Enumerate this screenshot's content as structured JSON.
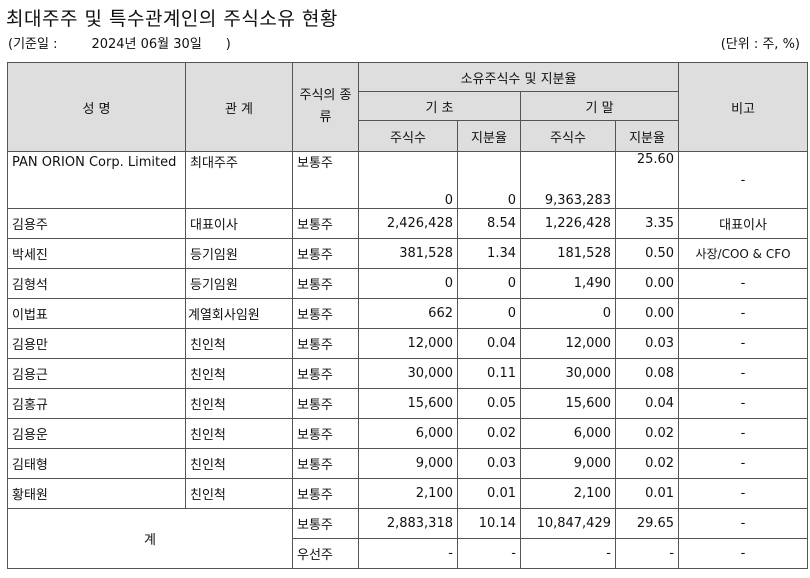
{
  "title": "최대주주 및 특수관계인의 주식소유 현황",
  "basis": {
    "label": "(기준일 :",
    "date": "2024년 06월 30일",
    "close": ")"
  },
  "unit": "(단위 : 주, %)",
  "headers": {
    "name": "성 명",
    "relation": "관 계",
    "kind": "주식의 종류",
    "holding": "소유주식수 및 지분율",
    "begin": "기 초",
    "end": "기 말",
    "shares": "주식수",
    "ratio": "지분율",
    "note": "비고"
  },
  "rows": [
    {
      "name": "PAN ORION Corp. Limited",
      "relation": "최대주주",
      "kind": "보통주",
      "begin_shares": "0",
      "begin_ratio": "0",
      "end_shares": "9,363,283",
      "end_ratio": "25.60",
      "note": "-"
    },
    {
      "name": "김용주",
      "relation": "대표이사",
      "kind": "보통주",
      "begin_shares": "2,426,428",
      "begin_ratio": "8.54",
      "end_shares": "1,226,428",
      "end_ratio": "3.35",
      "note": "대표이사"
    },
    {
      "name": "박세진",
      "relation": "등기임원",
      "kind": "보통주",
      "begin_shares": "381,528",
      "begin_ratio": "1.34",
      "end_shares": "181,528",
      "end_ratio": "0.50",
      "note": "사장/COO & CFO"
    },
    {
      "name": "김형석",
      "relation": "등기임원",
      "kind": "보통주",
      "begin_shares": "0",
      "begin_ratio": "0",
      "end_shares": "1,490",
      "end_ratio": "0.00",
      "note": "-"
    },
    {
      "name": "이법표",
      "relation": "계열회사임원",
      "kind": "보통주",
      "begin_shares": "662",
      "begin_ratio": "0",
      "end_shares": "0",
      "end_ratio": "0.00",
      "note": "-"
    },
    {
      "name": "김용만",
      "relation": "친인척",
      "kind": "보통주",
      "begin_shares": "12,000",
      "begin_ratio": "0.04",
      "end_shares": "12,000",
      "end_ratio": "0.03",
      "note": "-"
    },
    {
      "name": "김용근",
      "relation": "친인척",
      "kind": "보통주",
      "begin_shares": "30,000",
      "begin_ratio": "0.11",
      "end_shares": "30,000",
      "end_ratio": "0.08",
      "note": "-"
    },
    {
      "name": "김홍규",
      "relation": "친인척",
      "kind": "보통주",
      "begin_shares": "15,600",
      "begin_ratio": "0.05",
      "end_shares": "15,600",
      "end_ratio": "0.04",
      "note": "-"
    },
    {
      "name": "김용운",
      "relation": "친인척",
      "kind": "보통주",
      "begin_shares": "6,000",
      "begin_ratio": "0.02",
      "end_shares": "6,000",
      "end_ratio": "0.02",
      "note": "-"
    },
    {
      "name": "김태형",
      "relation": "친인척",
      "kind": "보통주",
      "begin_shares": "9,000",
      "begin_ratio": "0.03",
      "end_shares": "9,000",
      "end_ratio": "0.02",
      "note": "-"
    },
    {
      "name": "황태원",
      "relation": "친인척",
      "kind": "보통주",
      "begin_shares": "2,100",
      "begin_ratio": "0.01",
      "end_shares": "2,100",
      "end_ratio": "0.01",
      "note": "-"
    }
  ],
  "total": {
    "label": "계",
    "rows": [
      {
        "kind": "보통주",
        "begin_shares": "2,883,318",
        "begin_ratio": "10.14",
        "end_shares": "10,847,429",
        "end_ratio": "29.65",
        "note": "-"
      },
      {
        "kind": "우선주",
        "begin_shares": "-",
        "begin_ratio": "-",
        "end_shares": "-",
        "end_ratio": "-",
        "note": "-"
      }
    ]
  }
}
